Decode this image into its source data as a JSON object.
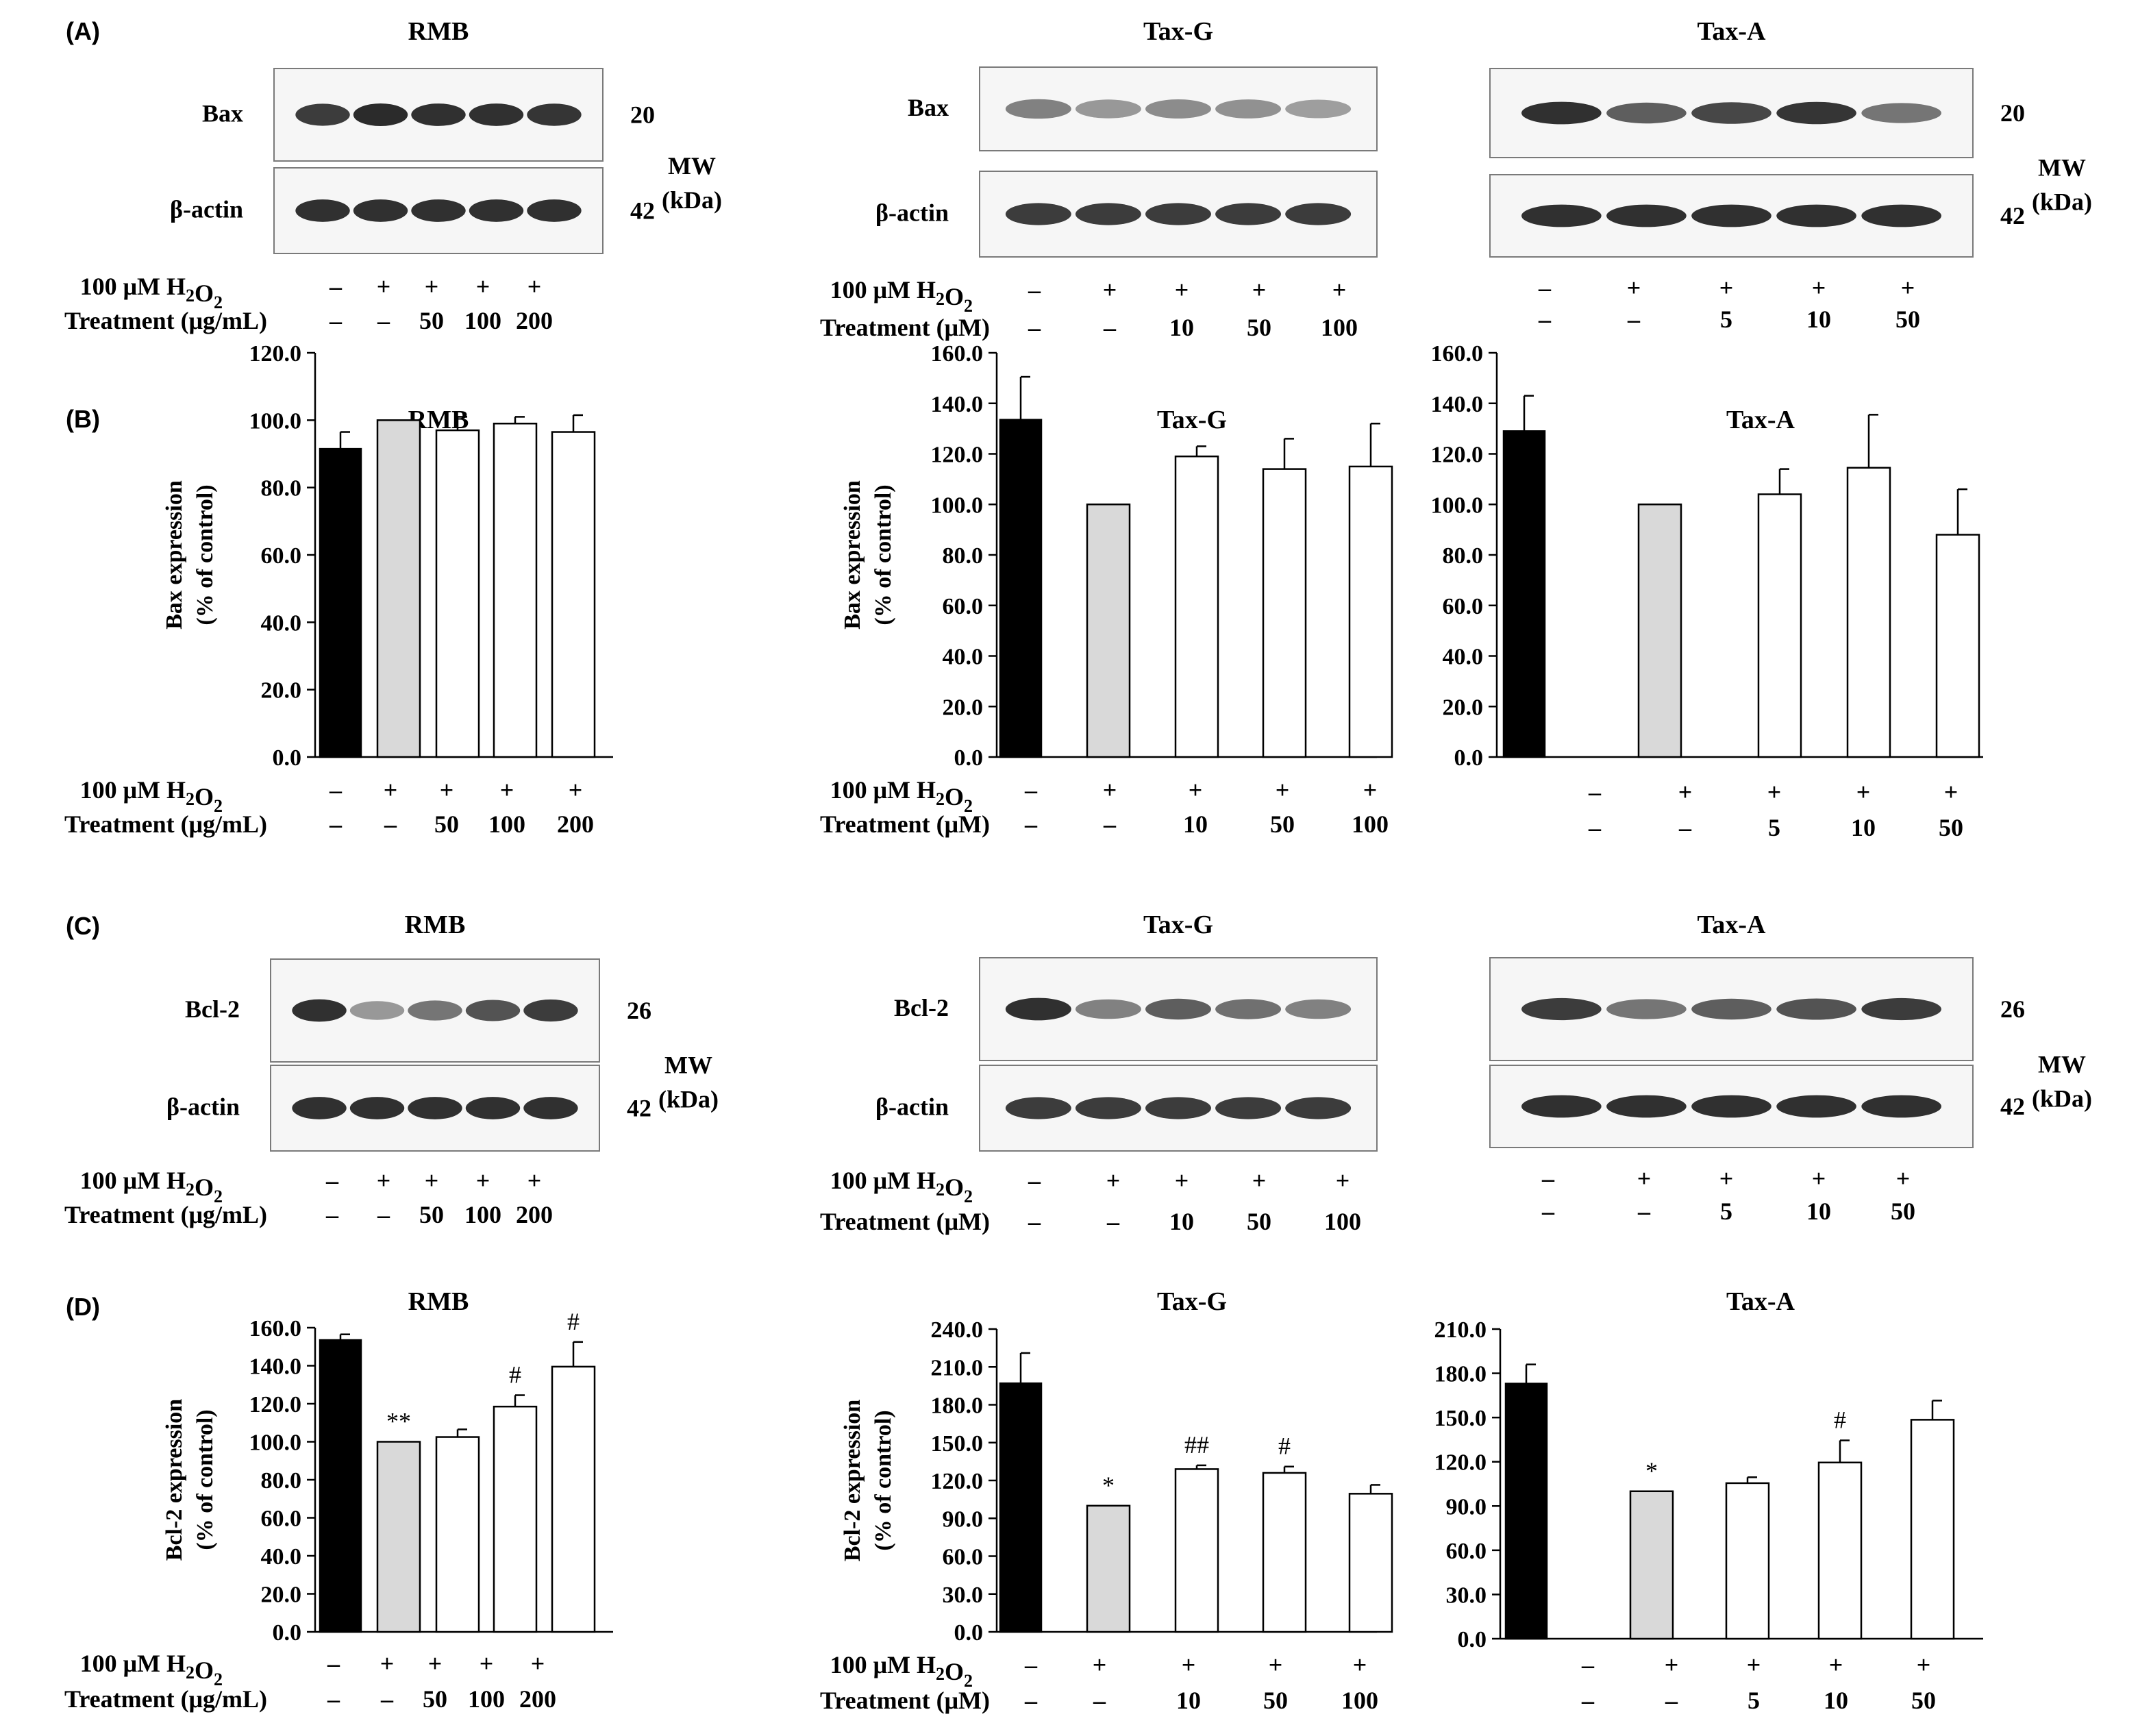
{
  "figure": {
    "bg": "#ffffff",
    "ink": "#000000",
    "bar_colors": [
      "#000000",
      "#d9d9d9",
      "#ffffff",
      "#ffffff",
      "#ffffff"
    ]
  },
  "panel_letters": [
    "(A)",
    "(B)",
    "(C)",
    "(D)"
  ],
  "blots": [
    {
      "title": "RMB",
      "protein": "Bax",
      "mw": "20",
      "actin_label": "β-actin",
      "actin_mw": "42",
      "mw_label": [
        "MW",
        "(kDa)"
      ],
      "band_strength": [
        0.85,
        0.92,
        0.9,
        0.9,
        0.88
      ],
      "actin_strength": [
        0.9,
        0.9,
        0.9,
        0.9,
        0.9
      ],
      "h2o2_label": "100 μM H₂O₂",
      "h2o2": [
        "–",
        "+",
        "+",
        "+",
        "+"
      ],
      "treat_label": "Treatment (μg/mL)",
      "treat": [
        "–",
        "–",
        "50",
        "100",
        "200"
      ]
    },
    {
      "title": "Tax-G",
      "protein": "Bax",
      "actin_label": "β-actin",
      "band_strength": [
        0.55,
        0.45,
        0.5,
        0.48,
        0.42
      ],
      "actin_strength": [
        0.85,
        0.85,
        0.85,
        0.85,
        0.85
      ],
      "h2o2_label": "100 μM H₂O₂",
      "h2o2": [
        "–",
        "+",
        "+",
        "+",
        "+"
      ],
      "treat_label": "Treatment (μM)",
      "treat": [
        "–",
        "–",
        "10",
        "50",
        "100"
      ]
    },
    {
      "title": "Tax-A",
      "mw": "20",
      "actin_mw": "42",
      "mw_label": [
        "MW",
        "(kDa)"
      ],
      "band_strength": [
        0.9,
        0.7,
        0.8,
        0.88,
        0.6
      ],
      "actin_strength": [
        0.9,
        0.9,
        0.9,
        0.9,
        0.9
      ],
      "h2o2": [
        "–",
        "+",
        "+",
        "+",
        "+"
      ],
      "treat": [
        "–",
        "–",
        "5",
        "10",
        "50"
      ]
    },
    {
      "title": "RMB",
      "protein": "Bcl-2",
      "mw": "26",
      "actin_label": "β-actin",
      "actin_mw": "42",
      "mw_label": [
        "MW",
        "(kDa)"
      ],
      "band_strength": [
        0.9,
        0.45,
        0.6,
        0.75,
        0.85
      ],
      "actin_strength": [
        0.9,
        0.9,
        0.9,
        0.9,
        0.9
      ],
      "h2o2_label": "100 μM H₂O₂",
      "h2o2": [
        "–",
        "+",
        "+",
        "+",
        "+"
      ],
      "treat_label": "Treatment (μg/mL)",
      "treat": [
        "–",
        "–",
        "50",
        "100",
        "200"
      ]
    },
    {
      "title": "Tax-G",
      "protein": "Bcl-2",
      "actin_label": "β-actin",
      "band_strength": [
        0.9,
        0.55,
        0.7,
        0.62,
        0.55
      ],
      "actin_strength": [
        0.85,
        0.85,
        0.85,
        0.85,
        0.85
      ],
      "h2o2_label": "100 μM H₂O₂",
      "h2o2": [
        "–",
        "+",
        "+",
        "+",
        "+"
      ],
      "treat_label": "Treatment (μM)",
      "treat": [
        "–",
        "–",
        "10",
        "50",
        "100"
      ]
    },
    {
      "title": "Tax-A",
      "mw": "26",
      "actin_mw": "42",
      "mw_label": [
        "MW",
        "(kDa)"
      ],
      "band_strength": [
        0.85,
        0.6,
        0.7,
        0.75,
        0.85
      ],
      "actin_strength": [
        0.9,
        0.9,
        0.9,
        0.9,
        0.9
      ],
      "h2o2": [
        "–",
        "+",
        "+",
        "+",
        "+"
      ],
      "treat": [
        "–",
        "–",
        "5",
        "10",
        "50"
      ]
    }
  ],
  "chart_data": [
    {
      "type": "bar",
      "title": "RMB",
      "ylabel": [
        "Bax expression",
        "(% of control)"
      ],
      "ylim": [
        0,
        120
      ],
      "yticks": [
        "0.0",
        "20.0",
        "40.0",
        "60.0",
        "80.0",
        "100.0",
        "120.0"
      ],
      "values": [
        91.5,
        100,
        97,
        99,
        96.5
      ],
      "errors": [
        5,
        0,
        4,
        2,
        5
      ],
      "sig": [
        "",
        "",
        "",
        "",
        ""
      ],
      "h2o2_label": "100 μM H₂O₂",
      "h2o2": [
        "–",
        "+",
        "+",
        "+",
        "+"
      ],
      "treat_label": "Treatment (μg/mL)",
      "treat": [
        "–",
        "–",
        "50",
        "100",
        "200"
      ]
    },
    {
      "type": "bar",
      "title": "Tax-G",
      "ylabel": [
        "Bax expression",
        "(% of control)"
      ],
      "ylim": [
        0,
        160
      ],
      "yticks": [
        "0.0",
        "20.0",
        "40.0",
        "60.0",
        "80.0",
        "100.0",
        "120.0",
        "140.0",
        "160.0"
      ],
      "values": [
        133.5,
        100,
        119,
        114,
        115
      ],
      "errors": [
        17,
        0,
        4,
        12,
        17
      ],
      "sig": [
        "",
        "",
        "",
        "",
        ""
      ],
      "h2o2_label": "100 μM H₂O₂",
      "h2o2": [
        "–",
        "+",
        "+",
        "+",
        "+"
      ],
      "treat_label": "Treatment (μM)",
      "treat": [
        "–",
        "–",
        "10",
        "50",
        "100"
      ]
    },
    {
      "type": "bar",
      "title": "Tax-A",
      "ylabel": [],
      "ylim": [
        0,
        160
      ],
      "yticks": [
        "0.0",
        "20.0",
        "40.0",
        "60.0",
        "80.0",
        "100.0",
        "120.0",
        "140.0",
        "160.0"
      ],
      "values": [
        129,
        100,
        104,
        114.5,
        88
      ],
      "errors": [
        14,
        0,
        10,
        21,
        18
      ],
      "sig": [
        "",
        "",
        "",
        "",
        ""
      ],
      "h2o2": [
        "–",
        "+",
        "+",
        "+",
        "+"
      ],
      "treat": [
        "–",
        "–",
        "5",
        "10",
        "50"
      ]
    },
    {
      "type": "bar",
      "title": "RMB",
      "ylabel": [
        "Bcl-2 expression",
        "(% of control)"
      ],
      "ylim": [
        0,
        160
      ],
      "yticks": [
        "0.0",
        "20.0",
        "40.0",
        "60.0",
        "80.0",
        "100.0",
        "120.0",
        "140.0",
        "160.0"
      ],
      "values": [
        153.5,
        100,
        102.5,
        118.5,
        139.5
      ],
      "errors": [
        3,
        0,
        4,
        6,
        13
      ],
      "sig": [
        "",
        "**",
        "",
        "#",
        "#"
      ],
      "h2o2_label": "100 μM H₂O₂",
      "h2o2": [
        "–",
        "+",
        "+",
        "+",
        "+"
      ],
      "treat_label": "Treatment (μg/mL)",
      "treat": [
        "–",
        "–",
        "50",
        "100",
        "200"
      ]
    },
    {
      "type": "bar",
      "title": "Tax-G",
      "ylabel": [
        "Bcl-2 expression",
        "(% of control)"
      ],
      "ylim": [
        0,
        240
      ],
      "yticks": [
        "0.0",
        "30.0",
        "60.0",
        "90.0",
        "120.0",
        "150.0",
        "180.0",
        "210.0",
        "240.0"
      ],
      "values": [
        197,
        100,
        129,
        126,
        109.5
      ],
      "errors": [
        24,
        0,
        3,
        5,
        7
      ],
      "sig": [
        "",
        "*",
        "##",
        "#",
        ""
      ],
      "h2o2_label": "100 μM H₂O₂",
      "h2o2": [
        "–",
        "+",
        "+",
        "+",
        "+"
      ],
      "treat_label": "Treatment (μM)",
      "treat": [
        "–",
        "–",
        "10",
        "50",
        "100"
      ]
    },
    {
      "type": "bar",
      "title": "Tax-A",
      "ylabel": [],
      "ylim": [
        0,
        210
      ],
      "yticks": [
        "0.0",
        "30.0",
        "60.0",
        "90.0",
        "120.0",
        "150.0",
        "180.0",
        "210.0"
      ],
      "values": [
        173,
        100,
        105.5,
        119.5,
        148.5
      ],
      "errors": [
        13,
        0,
        4,
        15,
        13
      ],
      "sig": [
        "",
        "*",
        "",
        "#",
        ""
      ],
      "h2o2": [
        "–",
        "+",
        "+",
        "+",
        "+"
      ],
      "treat": [
        "–",
        "–",
        "5",
        "10",
        "50"
      ]
    }
  ]
}
